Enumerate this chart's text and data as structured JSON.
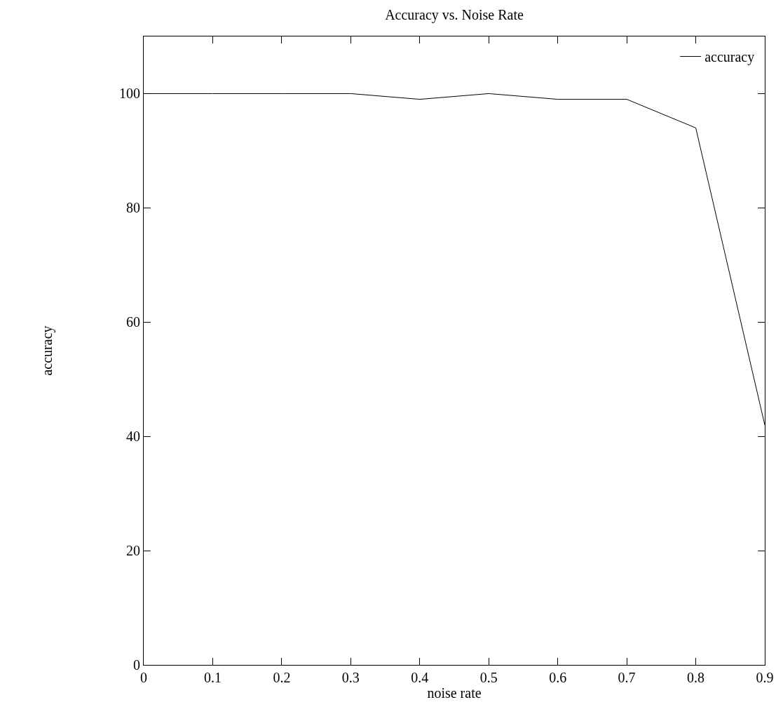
{
  "chart_data": {
    "type": "line",
    "title": "Accuracy vs. Noise Rate",
    "xlabel": "noise rate",
    "ylabel": "accuracy",
    "x": [
      0,
      0.1,
      0.2,
      0.3,
      0.4,
      0.5,
      0.6,
      0.7,
      0.8,
      0.9
    ],
    "series": [
      {
        "name": "accuracy",
        "color": "#000000",
        "values": [
          100,
          100,
          100,
          100,
          99,
          100,
          99,
          99,
          94,
          42
        ]
      }
    ],
    "xlim": [
      0,
      0.9
    ],
    "xticks": [
      0,
      0.1,
      0.2,
      0.3,
      0.4,
      0.5,
      0.6,
      0.7,
      0.8,
      0.9
    ],
    "ylim": [
      0,
      110
    ],
    "yticks": [
      0,
      20,
      40,
      60,
      80,
      100
    ],
    "legend": "top right",
    "marker": "none",
    "line_style": "solid"
  }
}
